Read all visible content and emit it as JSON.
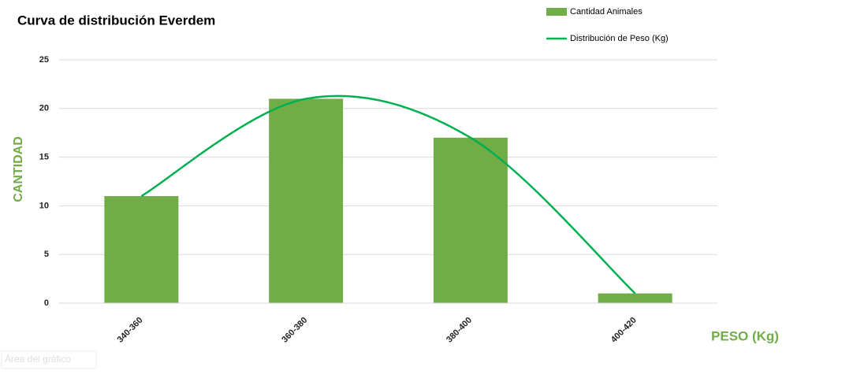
{
  "chart_data": {
    "type": "bar",
    "title": "Curva de distribución Everdem",
    "x_label": "PESO (Kg)",
    "y_label": "CANTIDAD",
    "categories": [
      "340-360",
      "360-380",
      "380-400",
      "400-420"
    ],
    "series": [
      {
        "name": "Cantidad Animales",
        "type": "bar",
        "color": "#70ad47",
        "values": [
          11,
          21,
          17,
          1
        ]
      },
      {
        "name": "Distribución de Peso (Kg)",
        "type": "line",
        "smooth": true,
        "color": "#00b050",
        "values": [
          11,
          21,
          17,
          1
        ]
      }
    ],
    "ylim": [
      0,
      25
    ],
    "yticks": [
      0,
      5,
      10,
      15,
      20,
      25
    ],
    "grid": true,
    "legend": "top-right",
    "tooltip": "Área del gráfico"
  }
}
